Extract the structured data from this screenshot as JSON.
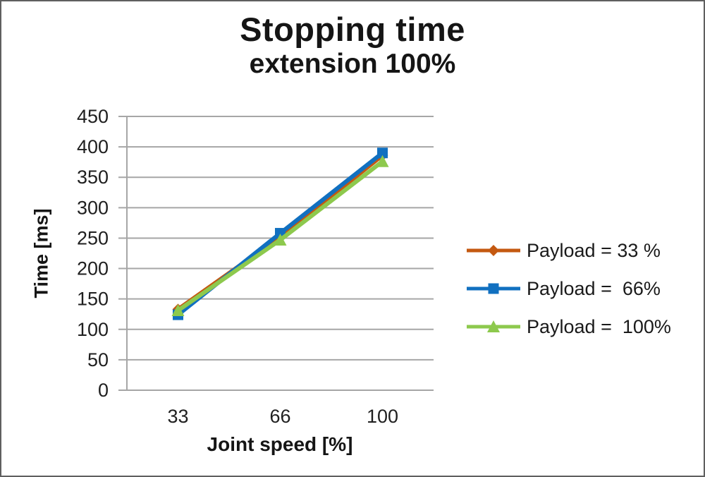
{
  "frame": {
    "background": "#ffffff",
    "border_color": "#5f5f5f"
  },
  "chart_data": {
    "type": "line",
    "title": "Stopping time",
    "subtitle": "extension 100%",
    "xlabel": "Joint speed [%]",
    "ylabel": "Time [ms]",
    "categories": [
      "33",
      "66",
      "100"
    ],
    "ylim": [
      0,
      450
    ],
    "ytick_step": 50,
    "yticks": [
      0,
      50,
      100,
      150,
      200,
      250,
      300,
      350,
      400,
      450
    ],
    "grid": true,
    "legend_position": "right",
    "series": [
      {
        "name": "Payload = 33 %",
        "marker": "diamond",
        "color": "#c45911",
        "values": [
          133,
          252,
          386
        ]
      },
      {
        "name": "Payload =  66%",
        "marker": "square",
        "color": "#1170c0",
        "values": [
          124,
          258,
          390
        ]
      },
      {
        "name": "Payload =  100%",
        "marker": "triangle",
        "color": "#8dc94d",
        "values": [
          131,
          247,
          376
        ]
      }
    ],
    "gridline_color": "#a6a6a6",
    "axis_line_color": "#a6a6a6",
    "tick_label_color": "#1f1f1f",
    "title_color": "#151515",
    "line_width": 6
  }
}
